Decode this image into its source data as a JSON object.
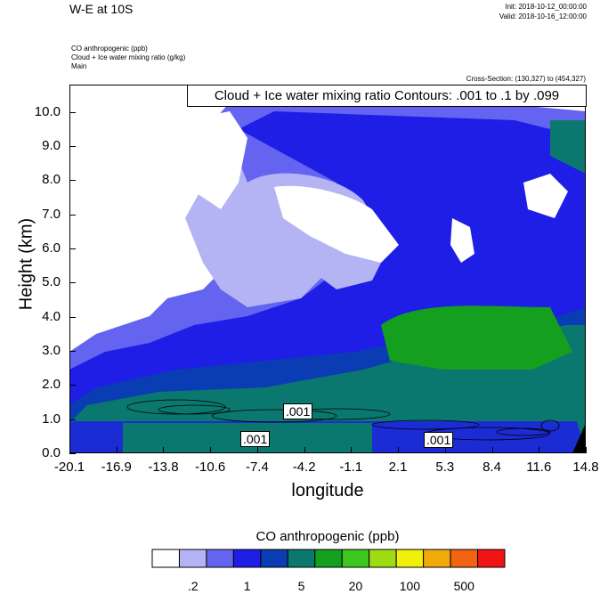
{
  "header": {
    "title": "W-E at 10S",
    "init": "Init: 2018-10-12_00:00:00",
    "valid": "Valid: 2018-10-16_12:00:00",
    "field1": "CO anthropogenic   (ppb)",
    "field2": "Cloud + Ice water mixing ratio   (g/kg)",
    "field3": "Main",
    "cross_section": "Cross-Section: (130,327) to (454,327)"
  },
  "chart_data": {
    "type": "heatmap",
    "title": "W-E at 10S",
    "xlabel": "longitude",
    "ylabel": "Height (km)",
    "xlim": [
      -20.1,
      14.8
    ],
    "ylim": [
      0.0,
      10.8
    ],
    "x_ticks": [
      "-20.1",
      "-16.9",
      "-13.8",
      "-10.6",
      "-7.4",
      "-4.2",
      "-1.1",
      "2.1",
      "5.3",
      "8.4",
      "11.6",
      "14.8"
    ],
    "y_ticks": [
      "0.0",
      "1.0",
      "2.0",
      "3.0",
      "4.0",
      "5.0",
      "6.0",
      "7.0",
      "8.0",
      "9.0",
      "10.0"
    ],
    "contour_title": "Cloud + Ice water mixing ratio Contours: .001 to .1 by .099",
    "contour_labels": [
      ".001",
      ".001",
      ".001"
    ],
    "colorbar": {
      "title": "CO anthropogenic  (ppb)",
      "labels": [
        ".2",
        "1",
        "5",
        "20",
        "100",
        "500"
      ],
      "colors": [
        "#ffffff",
        "#b4b4f4",
        "#6464f0",
        "#1e1ee6",
        "#0a3cb4",
        "#0a786e",
        "#14a01e",
        "#3cc81e",
        "#a0dc14",
        "#f0f00a",
        "#f0aa0a",
        "#f06414",
        "#f01414"
      ]
    }
  }
}
